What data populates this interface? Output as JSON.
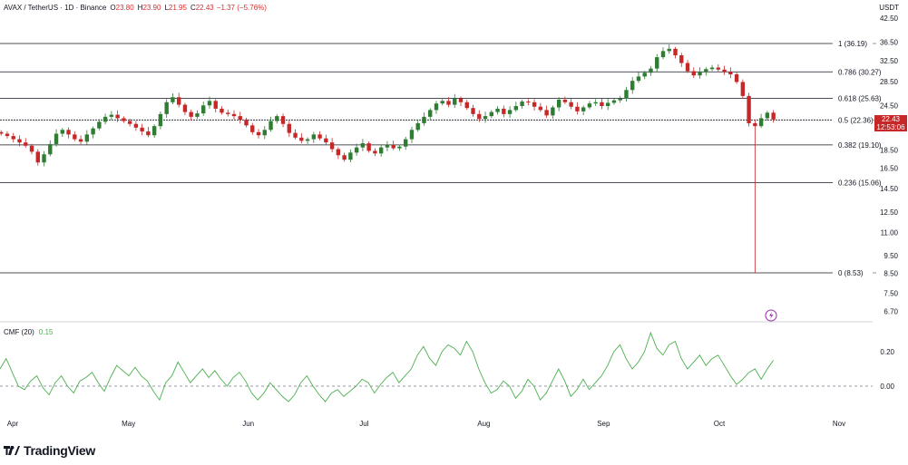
{
  "header": {
    "symbol": "AVAX / TetherUS · 1D · Binance",
    "open_label": "O",
    "open": "23.80",
    "high_label": "H",
    "high": "23.90",
    "low_label": "L",
    "low": "21.95",
    "close_label": "C",
    "close": "22.43",
    "change": "−1.37 (−5.76%)",
    "currency": "USDT"
  },
  "last_price": {
    "value": "22.43",
    "countdown": "12:53:06"
  },
  "indicator": {
    "name": "CMF (20)",
    "value": "0.15"
  },
  "branding": {
    "text": "TradingView"
  },
  "colors": {
    "up": "#26a69a",
    "down": "#ef5350",
    "green_candle": "#2e7d32",
    "red_candle": "#c62828",
    "cmf_line": "#4caf50",
    "fib_line": "#131722",
    "price_label": "#c62828"
  },
  "chart_data": [
    {
      "type": "candlestick",
      "title": "AVAX / TetherUS · 1D · Binance",
      "x_range": [
        "2024-04-01",
        "2024-11-01"
      ],
      "x_ticks": [
        "Apr",
        "May",
        "Jun",
        "Jul",
        "Aug",
        "Sep",
        "Oct",
        "Nov"
      ],
      "y_scale": "log",
      "y_ticks": [
        "42.50",
        "36.50",
        "32.50",
        "28.50",
        "24.50",
        "22.43",
        "18.50",
        "16.50",
        "14.50",
        "12.50",
        "11.00",
        "9.50",
        "8.50",
        "7.50",
        "6.70"
      ],
      "fib_levels": [
        {
          "label": "1 (36.19)",
          "value": 36.19
        },
        {
          "label": "0.786 (30.27)",
          "value": 30.27
        },
        {
          "label": "0.618 (25.63)",
          "value": 25.63
        },
        {
          "label": "0.5 (22.36)",
          "value": 22.36
        },
        {
          "label": "0.382 (19.10)",
          "value": 19.1
        },
        {
          "label": "0.236 (15.06)",
          "value": 15.06
        },
        {
          "label": "0 (8.53)",
          "value": 8.53
        }
      ],
      "close_approx": [
        20.5,
        20.2,
        19.8,
        19.4,
        19.0,
        18.3,
        17.1,
        18.0,
        19.2,
        20.5,
        21.0,
        20.4,
        19.8,
        19.5,
        20.4,
        21.2,
        22.1,
        22.8,
        23.1,
        22.6,
        22.2,
        21.8,
        21.3,
        20.8,
        20.3,
        21.5,
        23.2,
        25.0,
        25.8,
        24.6,
        23.5,
        22.8,
        23.3,
        24.5,
        25.2,
        24.0,
        23.4,
        23.2,
        22.9,
        22.4,
        21.6,
        20.7,
        20.3,
        21.0,
        22.2,
        22.9,
        21.8,
        20.6,
        20.0,
        19.6,
        19.8,
        20.4,
        19.9,
        19.4,
        18.6,
        17.9,
        17.4,
        18.2,
        18.8,
        19.3,
        18.4,
        18.1,
        18.8,
        19.1,
        18.7,
        18.9,
        19.8,
        21.0,
        21.9,
        22.8,
        23.8,
        24.8,
        25.2,
        24.6,
        25.6,
        25.0,
        24.1,
        23.2,
        22.5,
        22.9,
        23.5,
        24.0,
        23.2,
        23.8,
        24.4,
        25.1,
        25.0,
        24.3,
        23.8,
        23.0,
        24.2,
        25.4,
        25.0,
        24.3,
        23.6,
        24.2,
        24.8,
        25.0,
        24.4,
        24.9,
        25.3,
        25.6,
        27.0,
        28.6,
        29.4,
        30.1,
        30.9,
        33.2,
        34.5,
        35.0,
        33.6,
        32.0,
        30.4,
        29.6,
        30.3,
        30.8,
        31.1,
        30.7,
        30.3,
        29.8,
        28.4,
        26.0,
        21.9,
        21.5,
        22.6,
        23.4,
        22.43
      ]
    },
    {
      "type": "line",
      "title": "CMF (20)",
      "y_ticks": [
        "0.20",
        "0.00"
      ],
      "series": [
        {
          "name": "CMF (20)",
          "values": [
            0.1,
            0.16,
            0.08,
            0.0,
            -0.02,
            0.03,
            0.06,
            -0.01,
            -0.05,
            0.02,
            0.06,
            0.0,
            -0.04,
            0.03,
            0.05,
            0.08,
            0.02,
            -0.03,
            0.05,
            0.12,
            0.09,
            0.06,
            0.11,
            0.06,
            0.03,
            -0.03,
            -0.08,
            0.02,
            0.06,
            0.14,
            0.08,
            0.02,
            0.06,
            0.1,
            0.05,
            0.09,
            0.04,
            0.0,
            0.05,
            0.08,
            0.03,
            -0.04,
            -0.08,
            -0.04,
            0.02,
            -0.02,
            -0.06,
            -0.09,
            -0.05,
            0.02,
            0.06,
            0.0,
            -0.05,
            -0.09,
            -0.04,
            -0.02,
            -0.06,
            -0.03,
            0.0,
            0.04,
            0.02,
            -0.04,
            0.01,
            0.05,
            0.08,
            0.02,
            0.06,
            0.1,
            0.18,
            0.23,
            0.16,
            0.12,
            0.2,
            0.24,
            0.22,
            0.18,
            0.26,
            0.2,
            0.1,
            0.02,
            -0.04,
            -0.02,
            0.03,
            0.0,
            -0.07,
            -0.03,
            0.04,
            0.0,
            -0.08,
            -0.04,
            0.03,
            0.1,
            0.03,
            -0.06,
            -0.02,
            0.04,
            -0.02,
            0.02,
            0.06,
            0.12,
            0.2,
            0.24,
            0.16,
            0.1,
            0.14,
            0.2,
            0.31,
            0.22,
            0.18,
            0.24,
            0.26,
            0.16,
            0.1,
            0.14,
            0.18,
            0.12,
            0.16,
            0.18,
            0.12,
            0.06,
            0.01,
            0.04,
            0.08,
            0.1,
            0.04,
            0.1,
            0.15
          ]
        }
      ]
    }
  ]
}
